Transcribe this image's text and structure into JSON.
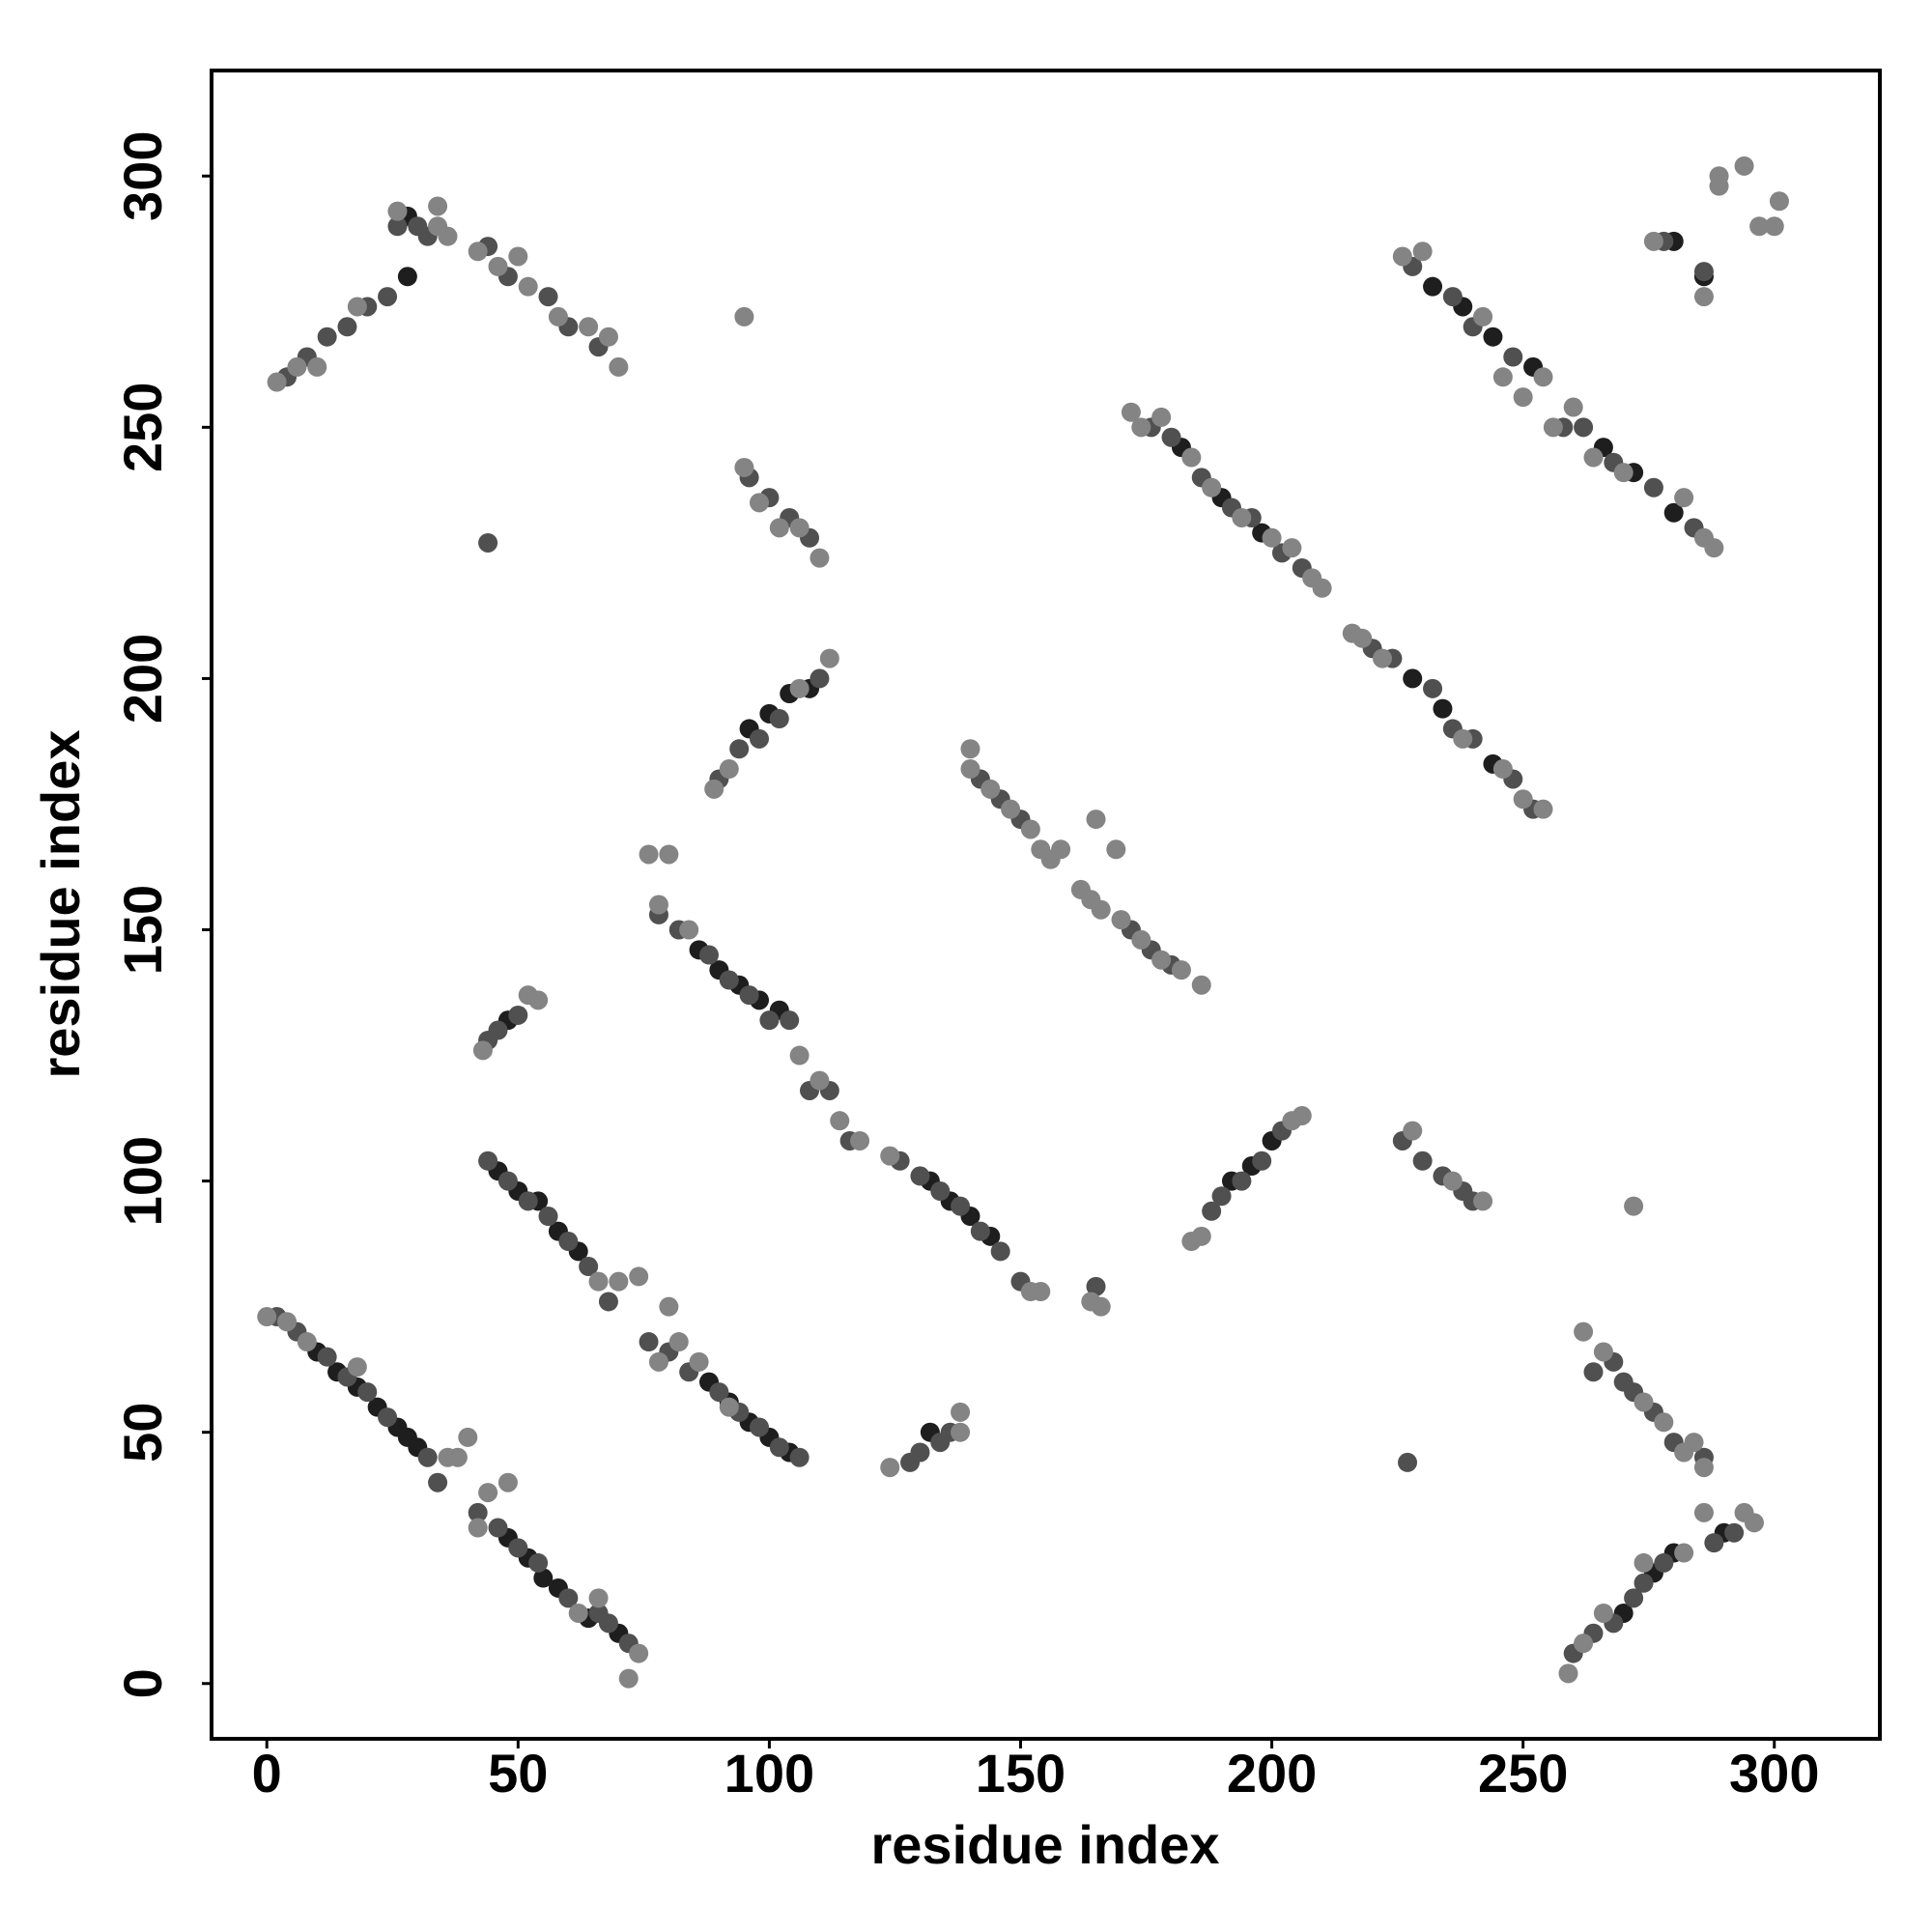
{
  "chart_data": {
    "type": "scatter",
    "x_label": "residue index",
    "y_label": "residue index",
    "xlim": [
      -11,
      321
    ],
    "ylim": [
      -11,
      321
    ],
    "xticks": [
      0,
      50,
      100,
      150,
      200,
      250,
      300
    ],
    "yticks": [
      0,
      50,
      100,
      150,
      200,
      250,
      300
    ],
    "grid": false,
    "series": [
      {
        "color": "#1e1e1e",
        "x": [
          10,
          14,
          18,
          22,
          26,
          28,
          30,
          48,
          52,
          55,
          58,
          64,
          70,
          46,
          50,
          54,
          58,
          62,
          88,
          92,
          96,
          100,
          104,
          86,
          90,
          94,
          98,
          102,
          132,
          136,
          140,
          144,
          182,
          190,
          198,
          228,
          234,
          244,
          232,
          238,
          244,
          252,
          266,
          272,
          280,
          96,
          100,
          104,
          108,
          192,
          196,
          200,
          270,
          276,
          280,
          290,
          280,
          286,
          28,
          28,
          132,
          48
        ],
        "y": [
          66,
          62,
          59,
          55,
          51,
          49,
          47,
          29,
          25,
          21,
          19,
          13,
          10,
          102,
          98,
          96,
          90,
          86,
          60,
          56,
          52,
          49,
          46,
          146,
          142,
          139,
          136,
          134,
          100,
          96,
          93,
          89,
          246,
          236,
          229,
          200,
          194,
          183,
          278,
          274,
          268,
          262,
          246,
          241,
          233,
          190,
          193,
          197,
          198,
          100,
          103,
          108,
          14,
          22,
          26,
          30,
          287,
          280,
          292,
          280,
          50,
          132
        ]
      },
      {
        "color": "#505050",
        "x": [
          2,
          6,
          12,
          16,
          20,
          24,
          32,
          34,
          42,
          46,
          50,
          54,
          60,
          66,
          68,
          72,
          44,
          48,
          52,
          56,
          60,
          64,
          68,
          76,
          80,
          84,
          90,
          94,
          98,
          102,
          106,
          78,
          82,
          88,
          92,
          96,
          100,
          104,
          108,
          112,
          116,
          126,
          130,
          134,
          138,
          142,
          146,
          150,
          165,
          142,
          146,
          150,
          172,
          176,
          180,
          176,
          180,
          186,
          192,
          196,
          202,
          206,
          220,
          224,
          232,
          236,
          240,
          248,
          252,
          228,
          236,
          240,
          248,
          258,
          262,
          268,
          276,
          284,
          4,
          8,
          12,
          16,
          20,
          24,
          26,
          30,
          32,
          44,
          48,
          56,
          60,
          66,
          96,
          100,
          104,
          108,
          90,
          94,
          98,
          102,
          110,
          44,
          46,
          50,
          128,
          130,
          134,
          136,
          188,
          190,
          194,
          198,
          202,
          226,
          230,
          234,
          238,
          240,
          260,
          264,
          268,
          272,
          274,
          278,
          288,
          292,
          264,
          268,
          270,
          272,
          276,
          280,
          286,
          278,
          286,
          44,
          227
        ],
        "y": [
          73,
          70,
          65,
          61,
          58,
          53,
          45,
          40,
          34,
          31,
          27,
          24,
          17,
          14,
          12,
          8,
          104,
          100,
          96,
          93,
          88,
          83,
          76,
          68,
          66,
          62,
          58,
          54,
          51,
          47,
          45,
          153,
          150,
          145,
          140,
          137,
          132,
          132,
          118,
          118,
          108,
          104,
          101,
          98,
          95,
          90,
          86,
          80,
          79,
          180,
          176,
          172,
          150,
          146,
          143,
          250,
          248,
          240,
          234,
          232,
          225,
          222,
          206,
          204,
          198,
          190,
          188,
          180,
          174,
          282,
          276,
          270,
          264,
          250,
          250,
          243,
          238,
          230,
          260,
          264,
          268,
          270,
          274,
          276,
          290,
          290,
          288,
          286,
          280,
          276,
          270,
          266,
          240,
          236,
          232,
          228,
          180,
          186,
          188,
          192,
          200,
          128,
          130,
          133,
          44,
          46,
          48,
          50,
          94,
          97,
          100,
          104,
          110,
          108,
          104,
          101,
          98,
          96,
          6,
          10,
          12,
          17,
          20,
          24,
          28,
          30,
          62,
          64,
          60,
          58,
          54,
          48,
          45,
          287,
          281,
          227,
          44
        ]
      },
      {
        "color": "#848484",
        "x": [
          0,
          4,
          8,
          18,
          36,
          38,
          40,
          42,
          44,
          48,
          62,
          66,
          74,
          72,
          66,
          70,
          74,
          80,
          78,
          82,
          86,
          92,
          76,
          80,
          78,
          84,
          106,
          110,
          114,
          118,
          124,
          152,
          154,
          164,
          166,
          140,
          140,
          144,
          148,
          152,
          154,
          156,
          158,
          162,
          164,
          166,
          170,
          174,
          178,
          182,
          186,
          165,
          169,
          172,
          174,
          178,
          184,
          188,
          194,
          200,
          204,
          208,
          210,
          216,
          218,
          222,
          238,
          246,
          250,
          254,
          226,
          230,
          242,
          246,
          250,
          254,
          256,
          260,
          264,
          270,
          282,
          286,
          288,
          2,
          6,
          10,
          18,
          26,
          34,
          34,
          36,
          42,
          46,
          50,
          52,
          58,
          64,
          68,
          70,
          95,
          95,
          98,
          102,
          106,
          110,
          89,
          92,
          106,
          112,
          43,
          52,
          54,
          124,
          138,
          138,
          186,
          184,
          204,
          206,
          228,
          236,
          242,
          259,
          262,
          266,
          274,
          282,
          294,
          296,
          286,
          262,
          266,
          274,
          278,
          282,
          284,
          286,
          272,
          276,
          286,
          289,
          289,
          294,
          297,
          300,
          301
        ],
        "y": [
          73,
          72,
          68,
          63,
          45,
          45,
          49,
          31,
          38,
          40,
          14,
          17,
          6,
          1,
          80,
          80,
          81,
          75,
          64,
          68,
          64,
          55,
          165,
          165,
          155,
          150,
          125,
          120,
          112,
          108,
          105,
          78,
          78,
          76,
          75,
          186,
          182,
          178,
          174,
          170,
          166,
          164,
          166,
          158,
          156,
          154,
          152,
          148,
          144,
          142,
          139,
          172,
          166,
          253,
          250,
          252,
          244,
          238,
          232,
          228,
          226,
          220,
          218,
          209,
          208,
          204,
          188,
          182,
          176,
          174,
          284,
          285,
          272,
          260,
          256,
          260,
          250,
          254,
          244,
          241,
          236,
          228,
          226,
          259,
          262,
          262,
          274,
          293,
          294,
          290,
          288,
          285,
          282,
          284,
          278,
          272,
          270,
          268,
          262,
          272,
          242,
          235,
          230,
          230,
          224,
          178,
          182,
          198,
          204,
          126,
          137,
          136,
          43,
          54,
          50,
          89,
          88,
          112,
          113,
          110,
          100,
          96,
          2,
          8,
          14,
          24,
          26,
          34,
          32,
          34,
          70,
          66,
          56,
          52,
          46,
          48,
          43,
          95,
          287,
          276,
          300,
          298,
          302,
          290,
          290,
          295
        ]
      }
    ]
  }
}
